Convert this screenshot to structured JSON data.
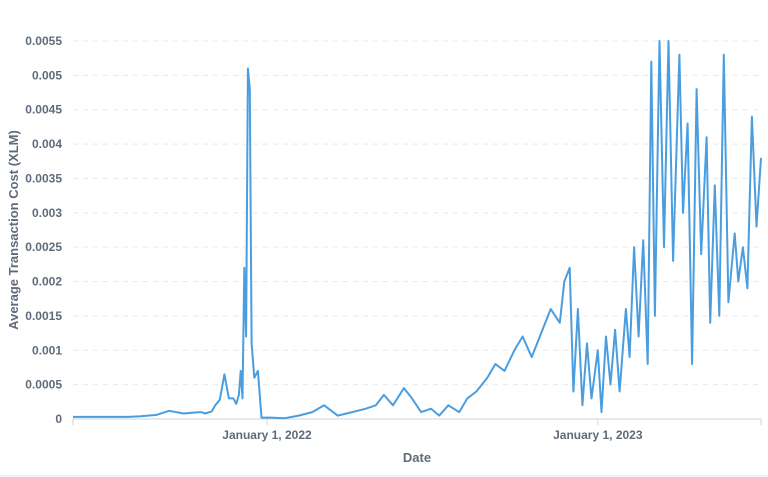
{
  "chart_data": {
    "type": "line",
    "title": "",
    "xlabel": "Date",
    "ylabel": "Average Transaction Cost (XLM)",
    "ylim": [
      0,
      0.0055
    ],
    "yticks": [
      "0",
      "0.0005",
      "0.001",
      "0.0015",
      "0.002",
      "0.0025",
      "0.003",
      "0.0035",
      "0.004",
      "0.0045",
      "0.005",
      "0.0055"
    ],
    "xlim": [
      "2021-06-01",
      "2023-06-30"
    ],
    "xticks": [
      {
        "date": "2022-01-01",
        "label": "January 1, 2022"
      },
      {
        "date": "2023-01-01",
        "label": "January 1, 2023"
      }
    ],
    "grid": true,
    "colors": {
      "series": "#4a9ee0",
      "text": "#5f6b7a"
    },
    "series": [
      {
        "name": "",
        "x": [
          "2021-06-01",
          "2021-06-15",
          "2021-07-01",
          "2021-07-15",
          "2021-08-01",
          "2021-08-15",
          "2021-09-01",
          "2021-09-15",
          "2021-10-01",
          "2021-10-10",
          "2021-10-20",
          "2021-10-25",
          "2021-11-01",
          "2021-11-05",
          "2021-11-10",
          "2021-11-15",
          "2021-11-20",
          "2021-11-25",
          "2021-11-28",
          "2021-12-01",
          "2021-12-03",
          "2021-12-05",
          "2021-12-07",
          "2021-12-09",
          "2021-12-11",
          "2021-12-13",
          "2021-12-15",
          "2021-12-18",
          "2021-12-22",
          "2021-12-26",
          "2022-01-05",
          "2022-01-20",
          "2022-02-05",
          "2022-02-20",
          "2022-03-05",
          "2022-03-20",
          "2022-04-05",
          "2022-04-20",
          "2022-05-01",
          "2022-05-10",
          "2022-05-20",
          "2022-06-01",
          "2022-06-10",
          "2022-06-20",
          "2022-07-01",
          "2022-07-10",
          "2022-07-20",
          "2022-08-01",
          "2022-08-10",
          "2022-08-20",
          "2022-09-01",
          "2022-09-10",
          "2022-09-20",
          "2022-10-01",
          "2022-10-10",
          "2022-10-20",
          "2022-11-01",
          "2022-11-10",
          "2022-11-20",
          "2022-11-25",
          "2022-12-01",
          "2022-12-05",
          "2022-12-10",
          "2022-12-15",
          "2022-12-20",
          "2022-12-25",
          "2023-01-01",
          "2023-01-05",
          "2023-01-10",
          "2023-01-15",
          "2023-01-20",
          "2023-01-25",
          "2023-02-01",
          "2023-02-05",
          "2023-02-10",
          "2023-02-15",
          "2023-02-20",
          "2023-02-25",
          "2023-03-01",
          "2023-03-05",
          "2023-03-10",
          "2023-03-15",
          "2023-03-20",
          "2023-03-25",
          "2023-04-01",
          "2023-04-05",
          "2023-04-10",
          "2023-04-15",
          "2023-04-20",
          "2023-04-25",
          "2023-05-01",
          "2023-05-05",
          "2023-05-10",
          "2023-05-15",
          "2023-05-20",
          "2023-05-25",
          "2023-06-01",
          "2023-06-05",
          "2023-06-10",
          "2023-06-15",
          "2023-06-20",
          "2023-06-25",
          "2023-06-30"
        ],
        "y": [
          3e-05,
          3e-05,
          3e-05,
          3e-05,
          3e-05,
          4e-05,
          6e-05,
          0.00012,
          8e-05,
          9e-05,
          0.0001,
          8e-05,
          0.00011,
          0.0002,
          0.00028,
          0.00065,
          0.0003,
          0.0003,
          0.00022,
          0.00035,
          0.0007,
          0.0003,
          0.0022,
          0.0012,
          0.0051,
          0.0048,
          0.0011,
          0.0006,
          0.0007,
          2e-05,
          2e-05,
          1e-05,
          5e-05,
          0.0001,
          0.0002,
          5e-05,
          0.0001,
          0.00015,
          0.0002,
          0.00035,
          0.0002,
          0.00045,
          0.0003,
          0.0001,
          0.00015,
          5e-05,
          0.0002,
          0.0001,
          0.0003,
          0.0004,
          0.0006,
          0.0008,
          0.0007,
          0.001,
          0.0012,
          0.0009,
          0.0013,
          0.0016,
          0.0014,
          0.002,
          0.0022,
          0.0004,
          0.0016,
          0.0002,
          0.0011,
          0.0003,
          0.001,
          0.0001,
          0.0012,
          0.0005,
          0.0013,
          0.0004,
          0.0016,
          0.0009,
          0.0025,
          0.0012,
          0.0026,
          0.0008,
          0.0052,
          0.0015,
          0.0055,
          0.0025,
          0.0055,
          0.0023,
          0.0053,
          0.003,
          0.0043,
          0.0008,
          0.0048,
          0.0024,
          0.0041,
          0.0014,
          0.0034,
          0.0015,
          0.0053,
          0.0017,
          0.0027,
          0.002,
          0.0025,
          0.0019,
          0.0044,
          0.0028,
          0.0038
        ]
      }
    ]
  }
}
